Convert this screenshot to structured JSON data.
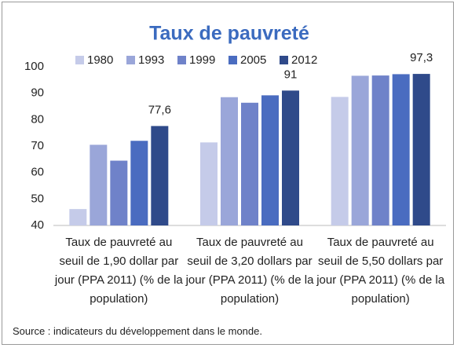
{
  "chart_data": {
    "type": "bar",
    "title": "Taux de pauvreté",
    "categories": [
      "Taux de pauvreté au seuil de 1,90 dollar par jour (PPA 2011) (% de la population)",
      "Taux de pauvreté au seuil de 3,20 dollars par jour (PPA 2011) (% de la population)",
      "Taux de pauvreté au seuil de 5,50 dollars par jour (PPA 2011) (% de la population)"
    ],
    "series": [
      {
        "name": "1980",
        "color": "#c5cbe9",
        "values": [
          46.2,
          71.4,
          88.6
        ]
      },
      {
        "name": "1993",
        "color": "#9aa6d9",
        "values": [
          70.5,
          88.5,
          96.6
        ]
      },
      {
        "name": "1999",
        "color": "#6f82c9",
        "values": [
          64.5,
          86.4,
          96.7
        ]
      },
      {
        "name": "2005",
        "color": "#4a6cc0",
        "values": [
          72,
          89.2,
          97.2
        ]
      },
      {
        "name": "2012",
        "color": "#2f4a8a",
        "values": [
          77.6,
          91,
          97.3
        ],
        "value_labels": [
          "77,6",
          "91",
          "97,3"
        ]
      }
    ],
    "ylim": [
      40,
      100
    ],
    "yticks": [
      40,
      50,
      60,
      70,
      80,
      90,
      100
    ],
    "grid": false,
    "source": "Source : indicateurs du développement dans le monde."
  }
}
